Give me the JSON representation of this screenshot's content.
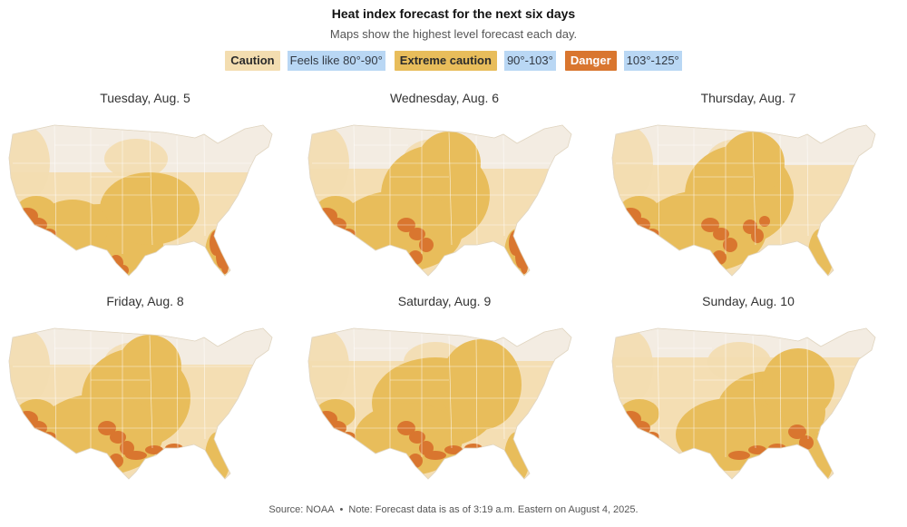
{
  "header": {
    "title": "Heat index forecast for the next six days",
    "subtitle": "Maps show the highest level forecast each day."
  },
  "legend": [
    {
      "label": "Caution",
      "range": "Feels like 80°-90°",
      "color": "#f3ddb0"
    },
    {
      "label": "Extreme caution",
      "range": "90°-103°",
      "color": "#e8bd5b"
    },
    {
      "label": "Danger",
      "range": "103°-125°",
      "color": "#d9762f"
    }
  ],
  "colors": {
    "base": "#f3ece2",
    "caution": "#f3ddb0",
    "extreme": "#e8bd5b",
    "danger": "#d9762f",
    "border": "#ffffff"
  },
  "maps": [
    {
      "day": "Tuesday, Aug. 5",
      "extreme_focus": "south-central",
      "danger_areas": [
        "southwest",
        "florida",
        "south-texas"
      ]
    },
    {
      "day": "Wednesday, Aug. 6",
      "extreme_focus": "central",
      "danger_areas": [
        "southwest",
        "texas",
        "florida"
      ]
    },
    {
      "day": "Thursday, Aug. 7",
      "extreme_focus": "central",
      "danger_areas": [
        "southwest",
        "texas",
        "lower-mississippi"
      ]
    },
    {
      "day": "Friday, Aug. 8",
      "extreme_focus": "central",
      "danger_areas": [
        "southwest",
        "texas",
        "gulf-coast"
      ]
    },
    {
      "day": "Saturday, Aug. 9",
      "extreme_focus": "central-east",
      "danger_areas": [
        "southwest",
        "texas",
        "gulf-coast"
      ]
    },
    {
      "day": "Sunday, Aug. 10",
      "extreme_focus": "southeast",
      "danger_areas": [
        "southwest",
        "gulf-coast",
        "georgia"
      ]
    }
  ],
  "footer": {
    "source": "Source: NOAA",
    "note": "Note: Forecast data is as of 3:19 a.m. Eastern on August 4, 2025."
  }
}
